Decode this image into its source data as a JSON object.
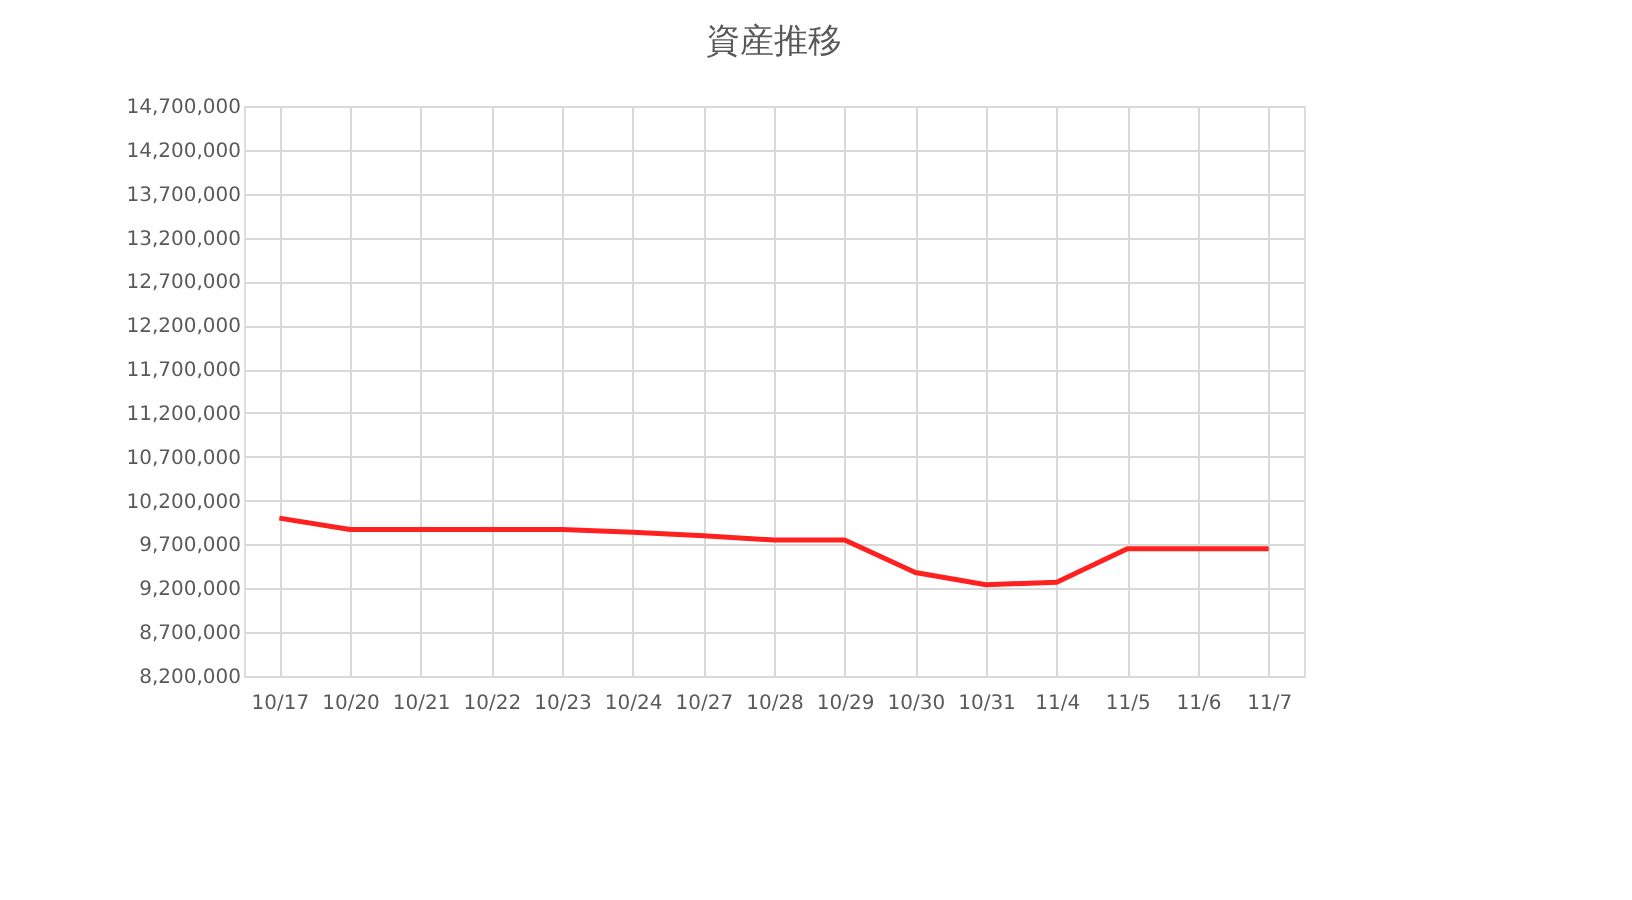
{
  "chart_data": {
    "type": "line",
    "title": "資産推移",
    "categories": [
      "10/17",
      "10/20",
      "10/21",
      "10/22",
      "10/23",
      "10/24",
      "10/27",
      "10/28",
      "10/29",
      "10/30",
      "10/31",
      "11/4",
      "11/5",
      "11/6",
      "11/7"
    ],
    "series": [
      {
        "color": "#ff2020",
        "values": [
          10000000,
          9870000,
          9870000,
          9870000,
          9870000,
          9840000,
          9800000,
          9750000,
          9750000,
          9380000,
          9240000,
          9270000,
          9650000,
          9650000,
          9650000
        ]
      }
    ],
    "ylim": [
      8200000,
      14700000
    ],
    "yticks": [
      {
        "value": 8200000,
        "label": "8,200,000"
      },
      {
        "value": 8700000,
        "label": "8,700,000"
      },
      {
        "value": 9200000,
        "label": "9,200,000"
      },
      {
        "value": 9700000,
        "label": "9,700,000"
      },
      {
        "value": 10200000,
        "label": "10,200,000"
      },
      {
        "value": 10700000,
        "label": "10,700,000"
      },
      {
        "value": 11200000,
        "label": "11,200,000"
      },
      {
        "value": 11700000,
        "label": "11,700,000"
      },
      {
        "value": 12200000,
        "label": "12,200,000"
      },
      {
        "value": 12700000,
        "label": "12,700,000"
      },
      {
        "value": 13200000,
        "label": "13,200,000"
      },
      {
        "value": 13700000,
        "label": "13,700,000"
      },
      {
        "value": 14200000,
        "label": "14,200,000"
      },
      {
        "value": 14700000,
        "label": "14,700,000"
      }
    ],
    "grid": true,
    "legend": false,
    "marker": "none",
    "line_style": "solid"
  }
}
